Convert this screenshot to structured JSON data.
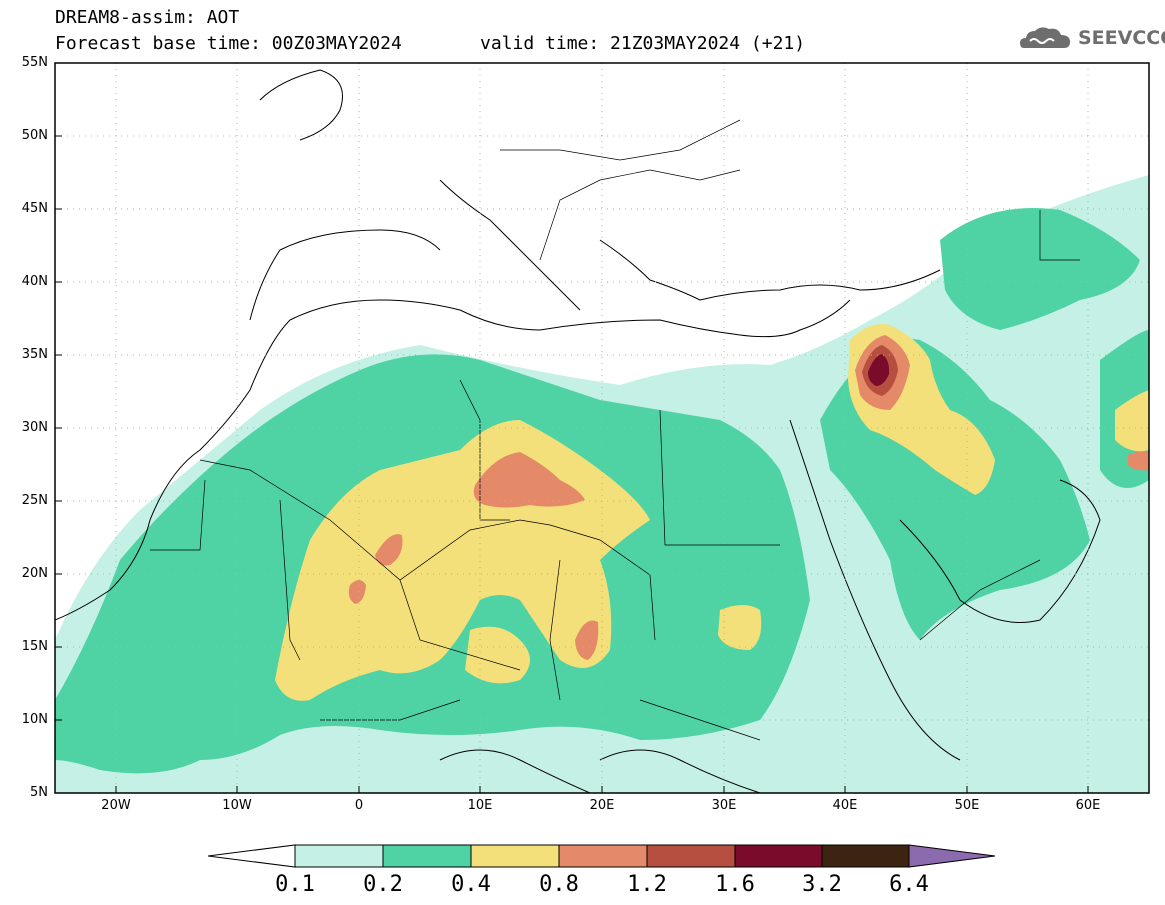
{
  "header": {
    "title_line1": "DREAM8-assim: AOT",
    "title_line2": "Forecast base time: 00Z03MAY2024",
    "valid_time": "valid time: 21Z03MAY2024 (+21)",
    "logo_text": "SEEVCCC",
    "logo_icon": "cloud-icon"
  },
  "axes": {
    "lat_labels": [
      "55N",
      "50N",
      "45N",
      "40N",
      "35N",
      "30N",
      "25N",
      "20N",
      "15N",
      "10N",
      "5N"
    ],
    "lon_labels": [
      "20W",
      "10W",
      "0",
      "10E",
      "20E",
      "30E",
      "40E",
      "50E",
      "60E"
    ]
  },
  "colorbar": {
    "labels": [
      "0.1",
      "0.2",
      "0.4",
      "0.8",
      "1.2",
      "1.6",
      "3.2",
      "6.4"
    ],
    "colors": [
      "#c4f0e6",
      "#4fd2a4",
      "#f4e07a",
      "#e48a68",
      "#b64f40",
      "#7a0b2a",
      "#3d2412",
      "#8c6aae"
    ]
  },
  "map": {
    "lon_range": [
      -25,
      65
    ],
    "lat_range": [
      5,
      55
    ],
    "variable": "AOT"
  }
}
